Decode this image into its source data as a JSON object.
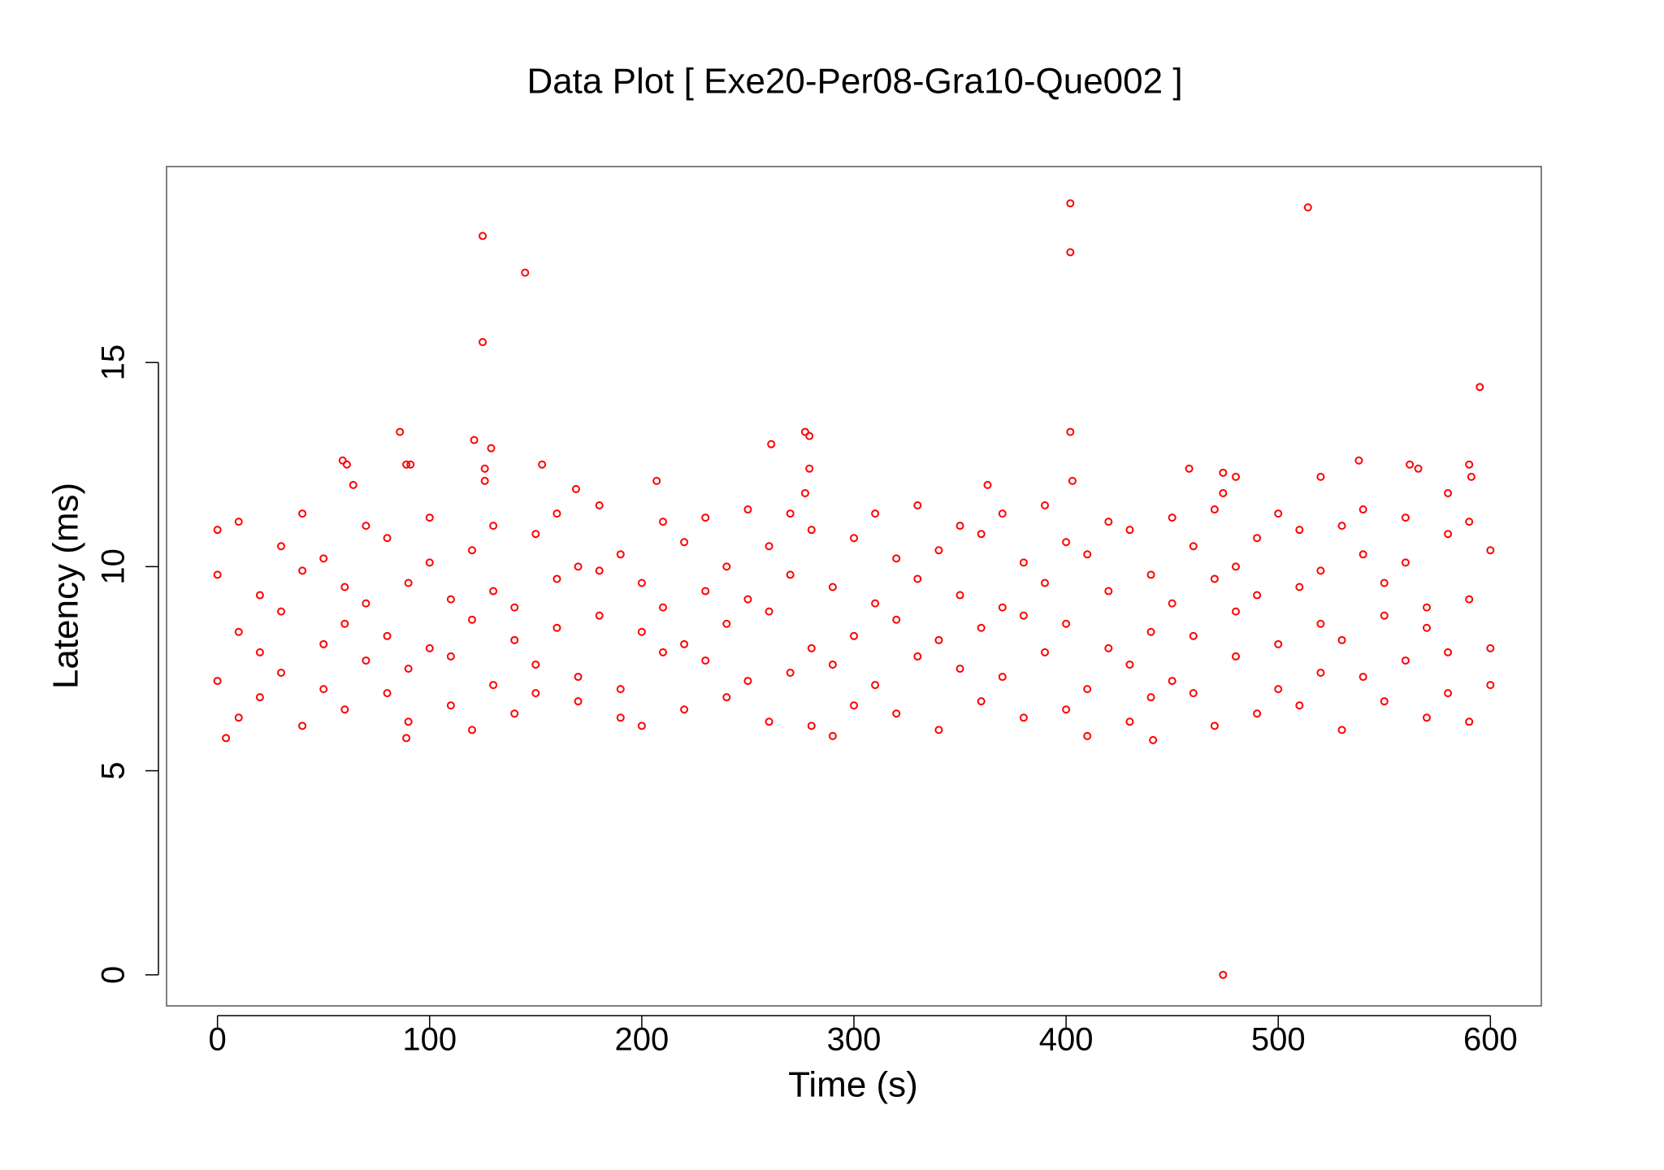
{
  "chart_data": {
    "type": "scatter",
    "title": "Data Plot [ Exe20-Per08-Gra10-Que002 ]",
    "x_label": "Time (s)",
    "y_label": "Latency (ms)",
    "xlim": [
      -24,
      624
    ],
    "ylim": [
      -0.76,
      19.8
    ],
    "xticks": [
      0,
      100,
      200,
      300,
      400,
      500,
      600
    ],
    "yticks": [
      0,
      5,
      10,
      15
    ],
    "color": "#ff0000",
    "x": [
      0,
      0,
      0,
      10,
      10,
      10,
      20,
      20,
      20,
      30,
      30,
      30,
      40,
      40,
      40,
      50,
      50,
      50,
      60,
      60,
      60,
      70,
      70,
      70,
      80,
      80,
      80,
      90,
      90,
      90,
      100,
      100,
      100,
      110,
      110,
      110,
      120,
      120,
      120,
      130,
      130,
      130,
      140,
      140,
      140,
      150,
      150,
      150,
      160,
      160,
      160,
      170,
      170,
      170,
      180,
      180,
      180,
      190,
      190,
      190,
      200,
      200,
      200,
      210,
      210,
      210,
      220,
      220,
      220,
      230,
      230,
      230,
      240,
      240,
      240,
      250,
      250,
      250,
      260,
      260,
      260,
      270,
      270,
      270,
      280,
      280,
      280,
      290,
      290,
      290,
      300,
      300,
      300,
      310,
      310,
      310,
      320,
      320,
      320,
      330,
      330,
      330,
      340,
      340,
      340,
      350,
      350,
      350,
      360,
      360,
      360,
      370,
      370,
      370,
      380,
      380,
      380,
      390,
      390,
      390,
      400,
      400,
      400,
      410,
      410,
      410,
      420,
      420,
      420,
      430,
      430,
      430,
      440,
      440,
      440,
      450,
      450,
      450,
      460,
      460,
      460,
      470,
      470,
      470,
      480,
      480,
      480,
      490,
      490,
      490,
      500,
      500,
      500,
      510,
      510,
      510,
      520,
      520,
      520,
      530,
      530,
      530,
      540,
      540,
      540,
      550,
      550,
      550,
      560,
      560,
      560,
      570,
      570,
      570,
      580,
      580,
      580,
      590,
      590,
      590,
      600,
      600,
      600,
      125,
      145,
      125,
      402,
      402,
      514,
      595,
      402,
      86,
      121,
      129,
      277,
      279,
      261,
      59,
      61,
      89,
      91,
      126,
      126,
      64,
      153,
      169,
      207,
      279,
      277,
      363,
      403,
      458,
      474,
      480,
      474,
      520,
      538,
      562,
      566,
      580,
      590,
      591,
      474,
      4,
      89,
      441
    ],
    "values": [
      7.2,
      9.8,
      10.9,
      6.3,
      8.4,
      11.1,
      7.9,
      9.3,
      6.8,
      10.5,
      7.4,
      8.9,
      6.1,
      9.9,
      11.3,
      8.1,
      7.0,
      10.2,
      9.5,
      6.5,
      8.6,
      11.0,
      7.7,
      9.1,
      6.9,
      8.3,
      10.7,
      7.5,
      9.6,
      6.2,
      10.1,
      8.0,
      11.2,
      6.6,
      9.2,
      7.8,
      8.7,
      10.4,
      6.0,
      7.1,
      11.0,
      9.4,
      9.0,
      6.4,
      8.2,
      10.8,
      7.6,
      6.9,
      8.5,
      9.7,
      11.3,
      6.7,
      7.3,
      10.0,
      9.9,
      8.8,
      11.5,
      7.0,
      10.3,
      6.3,
      8.4,
      6.1,
      9.6,
      11.1,
      7.9,
      9.0,
      6.5,
      10.6,
      8.1,
      7.7,
      9.4,
      11.2,
      10.0,
      6.8,
      8.6,
      9.2,
      11.4,
      7.2,
      6.2,
      8.9,
      10.5,
      7.4,
      9.8,
      11.3,
      8.0,
      6.1,
      10.9,
      9.5,
      7.6,
      5.85,
      10.7,
      8.3,
      6.6,
      7.1,
      9.1,
      11.3,
      6.4,
      10.2,
      8.7,
      9.7,
      7.8,
      11.5,
      8.2,
      6.0,
      10.4,
      7.5,
      9.3,
      11.0,
      10.8,
      6.7,
      8.5,
      9.0,
      11.3,
      7.3,
      6.3,
      8.8,
      10.1,
      7.9,
      11.5,
      9.6,
      8.6,
      6.5,
      10.6,
      10.3,
      7.0,
      5.85,
      9.4,
      8.0,
      11.1,
      6.2,
      10.9,
      7.6,
      8.4,
      9.8,
      6.8,
      11.2,
      7.2,
      9.1,
      6.9,
      10.5,
      8.3,
      9.7,
      6.1,
      11.4,
      7.8,
      8.9,
      10.0,
      10.7,
      6.4,
      9.3,
      8.1,
      11.3,
      7.0,
      6.6,
      9.5,
      10.9,
      9.9,
      7.4,
      8.6,
      11.0,
      6.0,
      8.2,
      7.3,
      10.3,
      11.4,
      8.8,
      6.7,
      9.6,
      10.1,
      7.7,
      11.2,
      6.3,
      9.0,
      8.5,
      7.9,
      10.8,
      6.9,
      9.2,
      6.2,
      11.1,
      8.0,
      10.4,
      7.1,
      18.1,
      17.2,
      15.5,
      18.9,
      17.7,
      18.8,
      14.4,
      13.3,
      13.3,
      13.1,
      12.9,
      13.3,
      13.2,
      13.0,
      12.6,
      12.5,
      12.5,
      12.5,
      12.4,
      12.1,
      12.0,
      12.5,
      11.9,
      12.1,
      12.4,
      11.8,
      12.0,
      12.1,
      12.4,
      12.3,
      12.2,
      11.8,
      12.2,
      12.6,
      12.5,
      12.4,
      11.8,
      12.5,
      12.2,
      0,
      5.8,
      5.8,
      5.75
    ]
  }
}
